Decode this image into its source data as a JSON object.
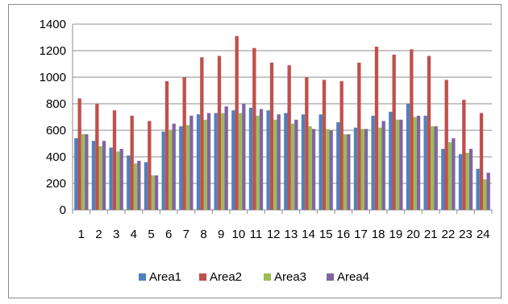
{
  "chart_data": {
    "type": "bar",
    "title": "",
    "xlabel": "",
    "ylabel": "",
    "ylim": [
      0,
      1400
    ],
    "yticks": [
      0,
      200,
      400,
      600,
      800,
      1000,
      1200,
      1400
    ],
    "grid": "horizontal",
    "legend": "bottom",
    "categories": [
      "1",
      "2",
      "3",
      "4",
      "5",
      "6",
      "7",
      "8",
      "9",
      "10",
      "11",
      "12",
      "13",
      "14",
      "15",
      "16",
      "17",
      "18",
      "19",
      "20",
      "21",
      "22",
      "23",
      "24"
    ],
    "series": [
      {
        "name": "Area1",
        "color": "#4F81BD",
        "values": [
          540,
          520,
          470,
          410,
          360,
          590,
          630,
          720,
          730,
          750,
          770,
          750,
          730,
          720,
          720,
          660,
          620,
          710,
          740,
          800,
          710,
          460,
          420,
          310
        ]
      },
      {
        "name": "Area2",
        "color": "#C0504D",
        "values": [
          840,
          800,
          750,
          710,
          670,
          970,
          1000,
          1150,
          1160,
          1310,
          1220,
          1110,
          1090,
          1000,
          980,
          970,
          1110,
          1230,
          1170,
          1210,
          1160,
          980,
          830,
          730
        ]
      },
      {
        "name": "Area3",
        "color": "#9BBB59",
        "values": [
          570,
          480,
          440,
          350,
          260,
          600,
          640,
          680,
          730,
          730,
          710,
          680,
          650,
          630,
          610,
          570,
          610,
          620,
          680,
          700,
          630,
          510,
          430,
          230
        ]
      },
      {
        "name": "Area4",
        "color": "#8064A2",
        "values": [
          570,
          520,
          460,
          370,
          260,
          650,
          710,
          730,
          780,
          800,
          760,
          720,
          680,
          610,
          600,
          570,
          610,
          670,
          680,
          710,
          630,
          540,
          460,
          280
        ]
      }
    ]
  }
}
